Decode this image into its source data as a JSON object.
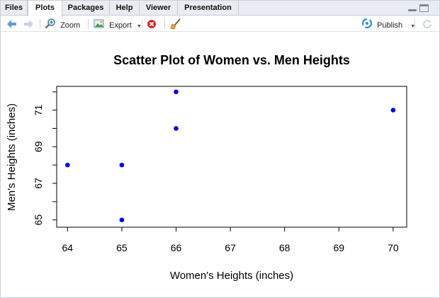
{
  "tabs": [
    {
      "label": "Files",
      "active": false
    },
    {
      "label": "Plots",
      "active": true
    },
    {
      "label": "Packages",
      "active": false
    },
    {
      "label": "Help",
      "active": false
    },
    {
      "label": "Viewer",
      "active": false
    },
    {
      "label": "Presentation",
      "active": false
    }
  ],
  "toolbar": {
    "zoom_label": "Zoom",
    "export_label": "Export",
    "publish_label": "Publish"
  },
  "colors": {
    "point": "#0000ff",
    "accent": "#1a73c9",
    "delete": "#d42a2a"
  },
  "icons": [
    "back-arrow-icon",
    "forward-arrow-icon",
    "zoom-icon",
    "export-icon",
    "remove-plot-icon",
    "broom-icon",
    "publish-icon",
    "refresh-icon"
  ],
  "chart_data": {
    "type": "scatter",
    "title": "Scatter Plot of Women vs. Men Heights",
    "xlabel": "Women's Heights (inches)",
    "ylabel": "Men's Heights (inches)",
    "x": [
      64,
      65,
      65,
      66,
      66,
      70
    ],
    "y": [
      68,
      68,
      65,
      72,
      70,
      71
    ],
    "xlim": [
      63.8,
      70.25
    ],
    "ylim": [
      64.6,
      72.3
    ],
    "xticks": [
      "64",
      "65",
      "66",
      "67",
      "68",
      "69",
      "70"
    ],
    "yticks": [
      "65",
      "67",
      "69",
      "71"
    ],
    "yminor_ticks": [
      66,
      68,
      70,
      72
    ],
    "grid": false
  }
}
